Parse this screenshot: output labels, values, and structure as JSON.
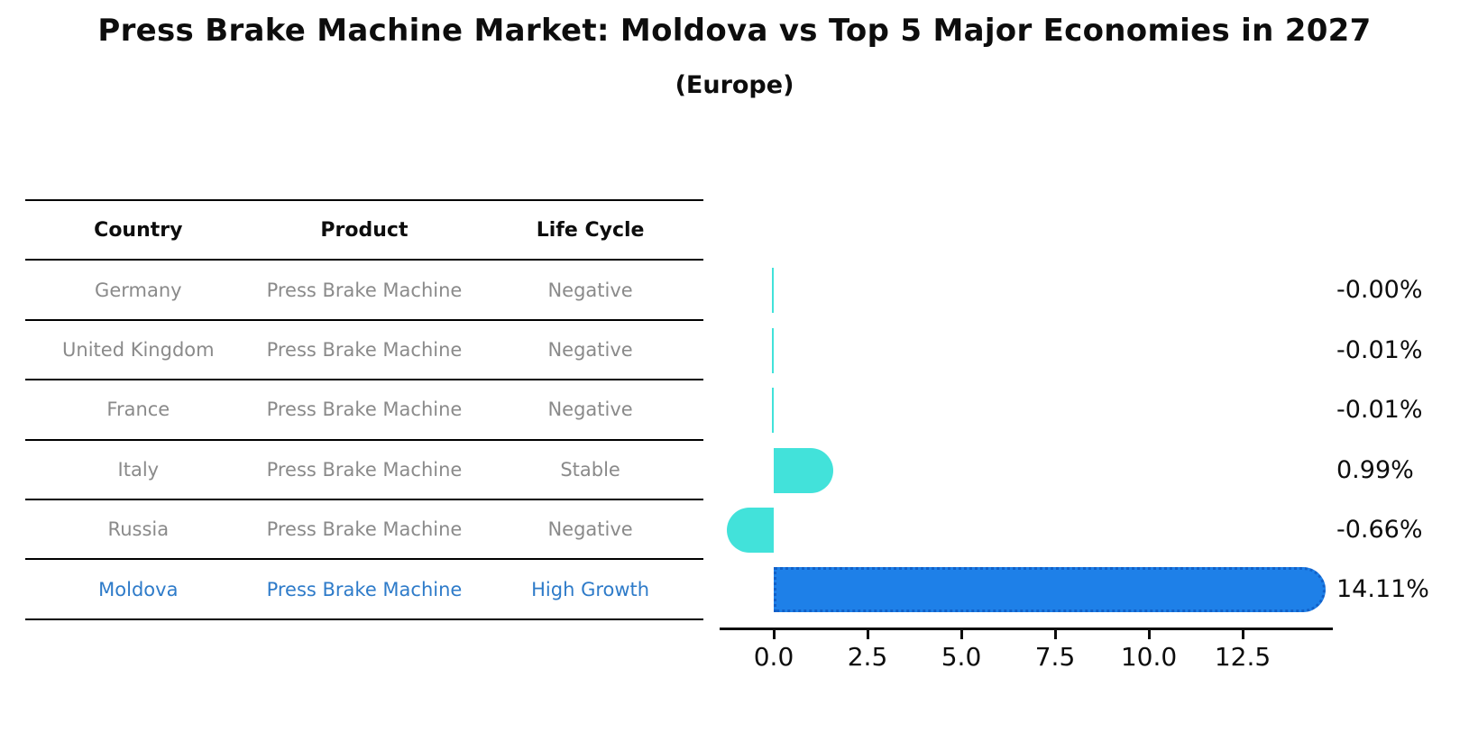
{
  "header": {
    "title": "Press Brake Machine Market: Moldova vs Top 5 Major Economies in 2027",
    "subtitle": "(Europe)"
  },
  "table": {
    "headers": [
      "Country",
      "Product",
      "Life Cycle"
    ],
    "rows": [
      {
        "country": "Germany",
        "product": "Press Brake Machine",
        "life_cycle": "Negative",
        "highlight": false
      },
      {
        "country": "United Kingdom",
        "product": "Press Brake Machine",
        "life_cycle": "Negative",
        "highlight": false
      },
      {
        "country": "France",
        "product": "Press Brake Machine",
        "life_cycle": "Negative",
        "highlight": false
      },
      {
        "country": "Italy",
        "product": "Press Brake Machine",
        "life_cycle": "Stable",
        "highlight": false
      },
      {
        "country": "Russia",
        "product": "Press Brake Machine",
        "life_cycle": "Negative",
        "highlight": false
      },
      {
        "country": "Moldova",
        "product": "Press Brake Machine",
        "life_cycle": "High Growth",
        "highlight": true
      }
    ]
  },
  "chart_data": {
    "type": "bar",
    "orientation": "horizontal",
    "title": "Press Brake Machine Market: Moldova vs Top 5 Major Economies in 2027 (Europe)",
    "categories": [
      "Germany",
      "United Kingdom",
      "France",
      "Italy",
      "Russia",
      "Moldova"
    ],
    "values": [
      -0.0,
      -0.01,
      -0.01,
      0.99,
      -0.66,
      14.11
    ],
    "value_labels": [
      "-0.00%",
      "-0.01%",
      "-0.01%",
      "0.99%",
      "-0.66%",
      "14.11%"
    ],
    "x_tick_values": [
      0.0,
      2.5,
      5.0,
      7.5,
      10.0,
      12.5
    ],
    "x_tick_labels": [
      "0.0",
      "2.5",
      "5.0",
      "7.5",
      "10.0",
      "12.5"
    ],
    "xlim": [
      -1.44,
      14.9
    ],
    "grid": false,
    "legend": false,
    "highlight_index": 5,
    "colors": {
      "bar_default": "#42e2da",
      "bar_highlight": "#1e80e8",
      "bar_highlight_edge": "#1261c9",
      "highlight_text": "#2e7bc9",
      "table_text": "#8a8a8a",
      "axis": "#0d0d0d"
    }
  }
}
